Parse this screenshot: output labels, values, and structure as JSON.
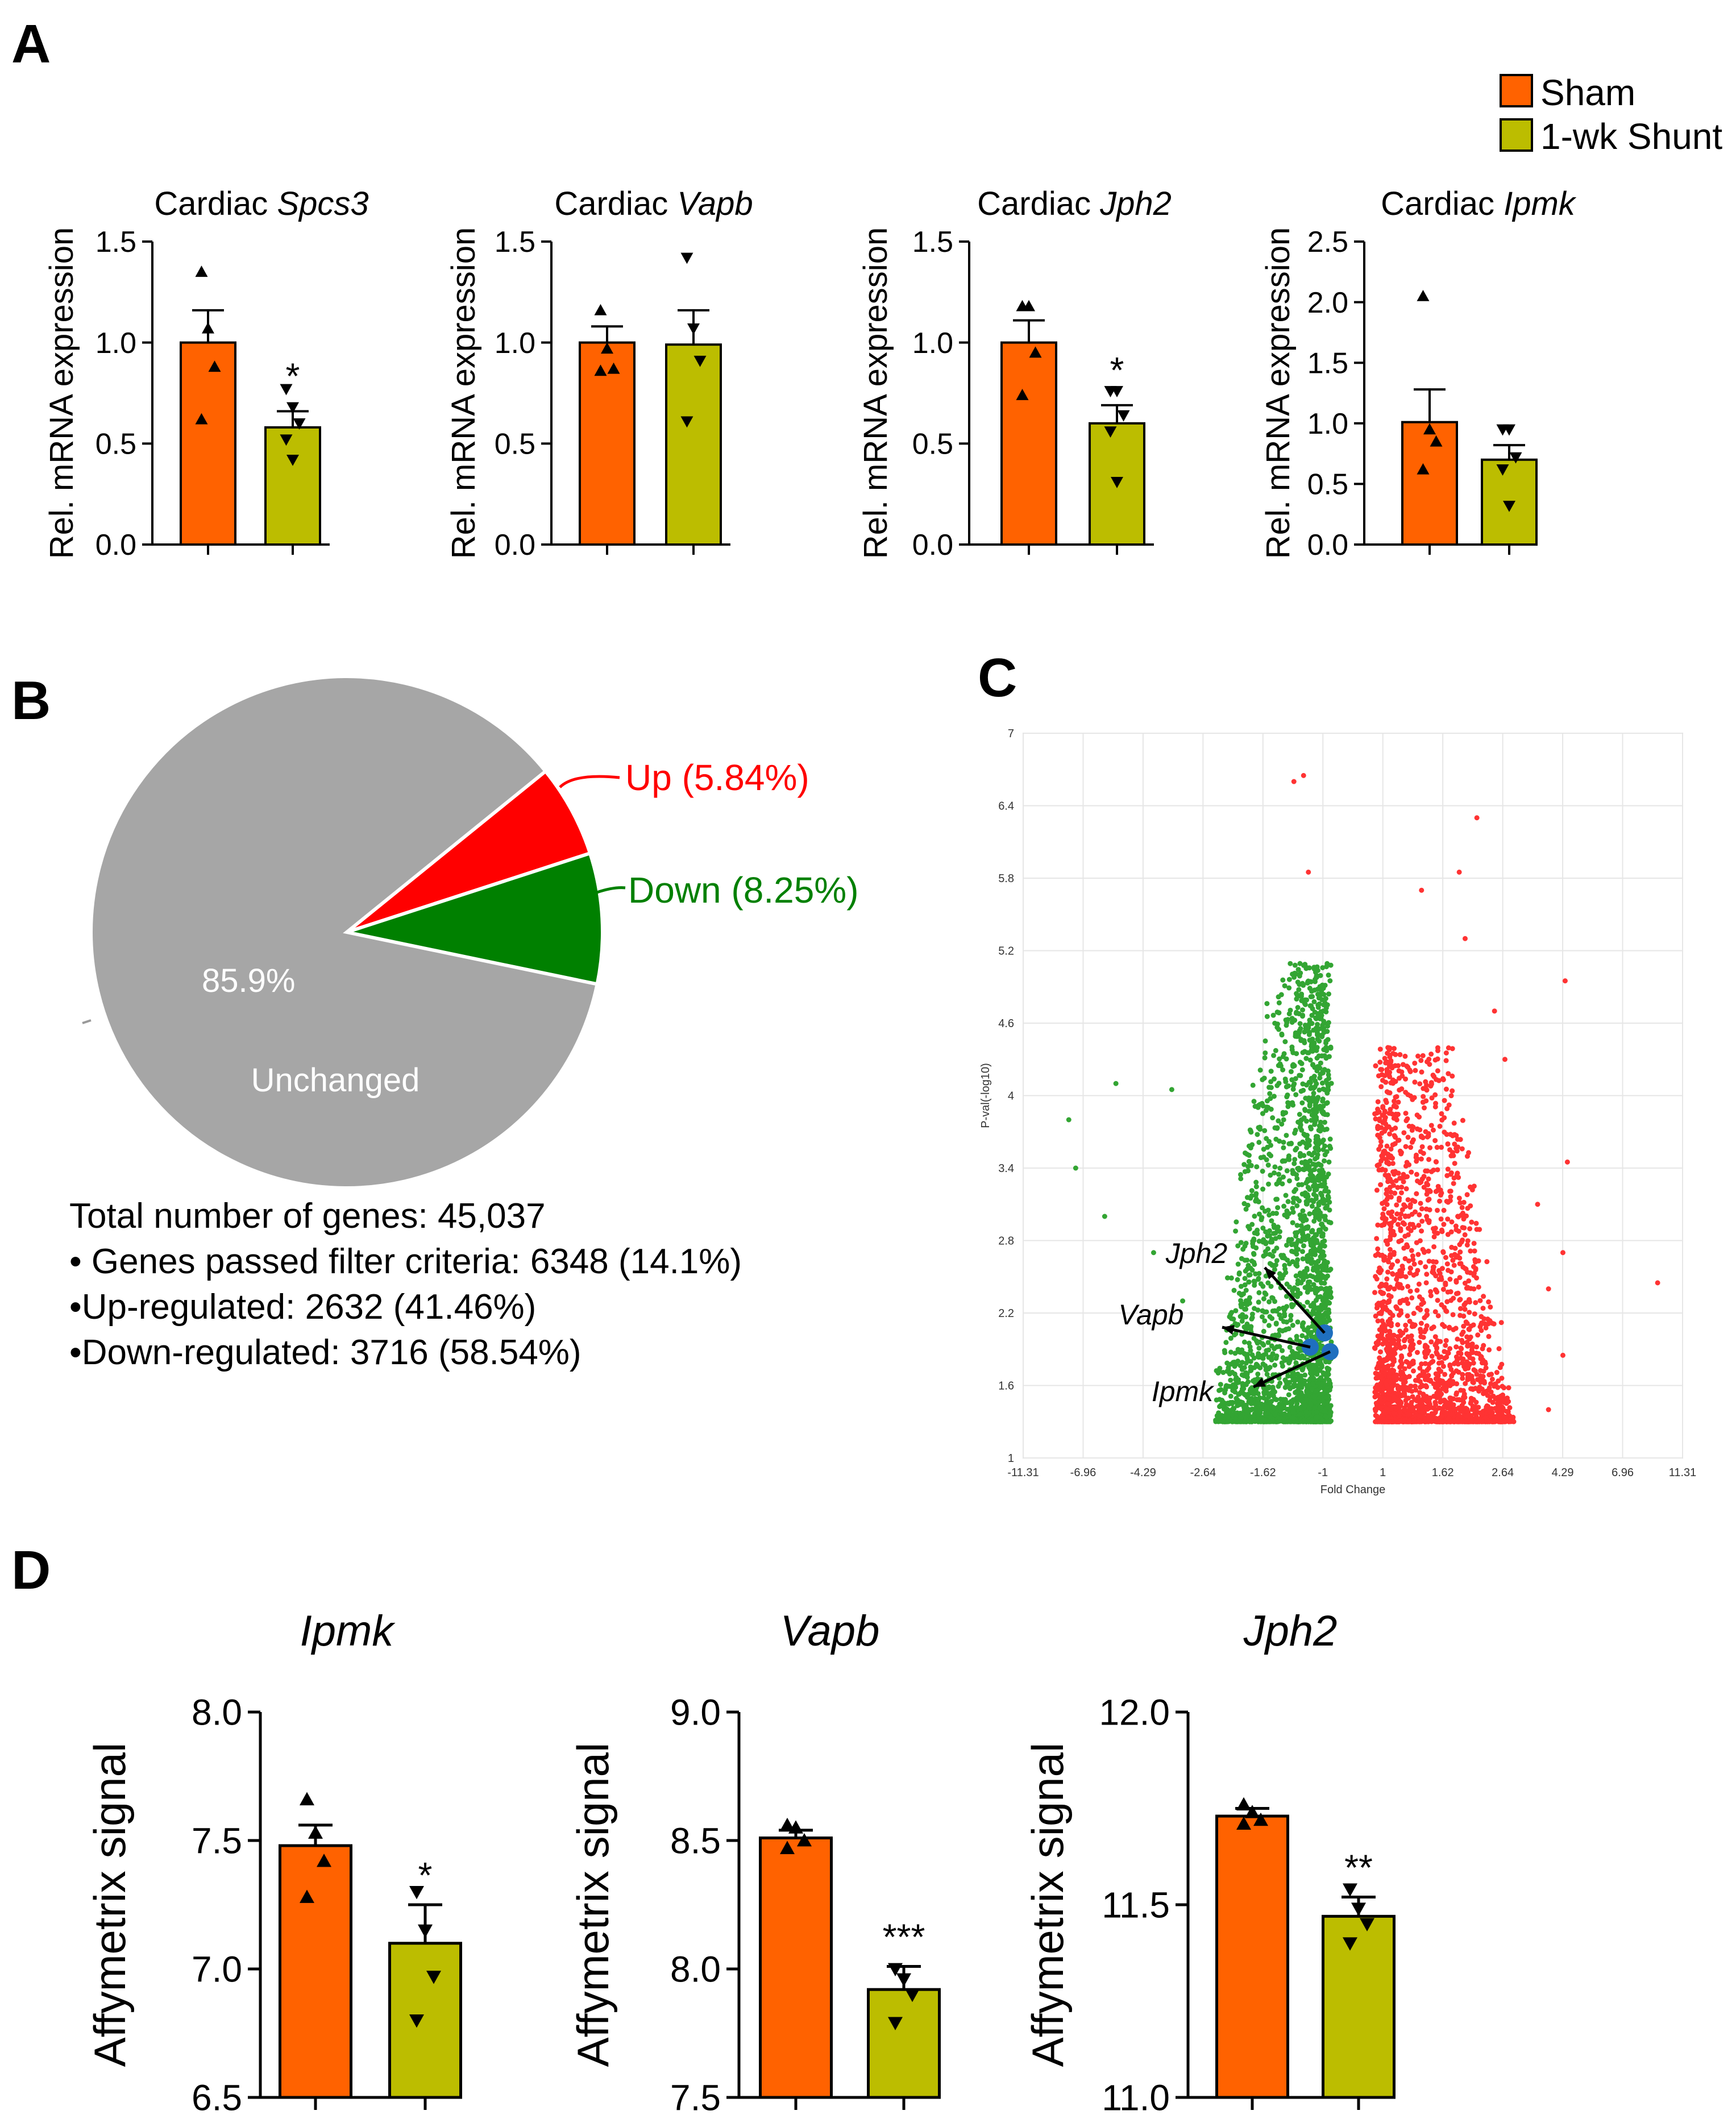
{
  "panels": {
    "A": "A",
    "B": "B",
    "C": "C",
    "D": "D"
  },
  "colors": {
    "sham": "#ff6200",
    "shunt": "#bcbd00",
    "up": "#ff0000",
    "down": "#008000",
    "unchanged": "#a6a6a6",
    "volcano_up": "#ff3333",
    "volcano_down": "#33a533",
    "highlight": "#1f6fbf"
  },
  "legend": {
    "sham": "Sham",
    "shunt": "1-wk Shunt"
  },
  "chart_data": [
    {
      "id": "A1",
      "type": "bar",
      "title_prefix": "Cardiac ",
      "gene": "Spcs3",
      "ylabel": "Rel. mRNA expression",
      "ylim": [
        0,
        1.5
      ],
      "yticks": [
        "0.0",
        "0.5",
        "1.0",
        "1.5"
      ],
      "ytick_values": [
        0,
        0.5,
        1.0,
        1.5
      ],
      "categories": [
        "Sham",
        "1-wk Shunt"
      ],
      "values": [
        1.0,
        0.58
      ],
      "errors": [
        0.16,
        0.08
      ],
      "points": [
        [
          1.35,
          1.07,
          0.88,
          0.62
        ],
        [
          0.77,
          0.68,
          0.6,
          0.52,
          0.42
        ]
      ],
      "significance": [
        "",
        "*"
      ]
    },
    {
      "id": "A2",
      "type": "bar",
      "title_prefix": "Cardiac ",
      "gene": "Vapb",
      "ylabel": "Rel. mRNA expression",
      "ylim": [
        0,
        1.5
      ],
      "yticks": [
        "0.0",
        "0.5",
        "1.0",
        "1.5"
      ],
      "ytick_values": [
        0,
        0.5,
        1.0,
        1.5
      ],
      "categories": [
        "Sham",
        "1-wk Shunt"
      ],
      "values": [
        1.0,
        0.99
      ],
      "errors": [
        0.08,
        0.17
      ],
      "points": [
        [
          1.16,
          0.97,
          0.87,
          0.86
        ],
        [
          1.42,
          1.07,
          0.91,
          0.61
        ]
      ],
      "significance": [
        "",
        ""
      ]
    },
    {
      "id": "A3",
      "type": "bar",
      "title_prefix": "Cardiac ",
      "gene": "Jph2",
      "ylabel": "Rel. mRNA expression",
      "ylim": [
        0,
        1.5
      ],
      "yticks": [
        "0.0",
        "0.5",
        "1.0",
        "1.5"
      ],
      "ytick_values": [
        0,
        0.5,
        1.0,
        1.5
      ],
      "categories": [
        "Sham",
        "1-wk Shunt"
      ],
      "values": [
        1.0,
        0.6
      ],
      "errors": [
        0.11,
        0.09
      ],
      "points": [
        [
          1.18,
          1.18,
          0.95,
          0.74
        ],
        [
          0.76,
          0.76,
          0.64,
          0.56,
          0.31
        ]
      ],
      "significance": [
        "",
        "*"
      ]
    },
    {
      "id": "A4",
      "type": "bar",
      "title_prefix": "Cardiac ",
      "gene": "Ipmk",
      "ylabel": "Rel. mRNA expression",
      "ylim": [
        0,
        2.5
      ],
      "yticks": [
        "0.0",
        "0.5",
        "1.0",
        "1.5",
        "2.0",
        "2.5"
      ],
      "ytick_values": [
        0,
        0.5,
        1.0,
        1.5,
        2.0,
        2.5
      ],
      "categories": [
        "Sham",
        "1-wk Shunt"
      ],
      "values": [
        1.01,
        0.7
      ],
      "errors": [
        0.27,
        0.12
      ],
      "points": [
        [
          2.05,
          0.95,
          0.85,
          0.62
        ],
        [
          0.95,
          0.95,
          0.72,
          0.62,
          0.32
        ]
      ],
      "significance": [
        "",
        ""
      ]
    },
    {
      "id": "B",
      "type": "pie",
      "slices": [
        {
          "label": "Up (5.84%)",
          "value": 5.84
        },
        {
          "label": "Down (8.25%)",
          "value": 8.25
        },
        {
          "label": "Unchanged",
          "pct_label": "85.9%",
          "value": 85.9
        }
      ]
    },
    {
      "id": "C",
      "type": "scatter",
      "xlabel": "Fold Change",
      "ylabel": "P-val(-log10)",
      "xticks": [
        "-11.31",
        "-6.96",
        "-4.29",
        "-2.64",
        "-1.62",
        "-1",
        "1",
        "1.62",
        "2.64",
        "4.29",
        "6.96",
        "11.31"
      ],
      "yticks": [
        "1",
        "1.6",
        "2.2",
        "2.8",
        "3.4",
        "4",
        "4.6",
        "5.2",
        "5.8",
        "6.4",
        "7"
      ],
      "ylim": [
        1,
        7
      ],
      "highlighted": [
        {
          "gene": "Jph2",
          "x": -1.1,
          "y": 2.0
        },
        {
          "gene": "Vapb",
          "x": -1.3,
          "y": 1.88
        },
        {
          "gene": "Ipmk",
          "x": -1.05,
          "y": 1.85
        }
      ]
    },
    {
      "id": "D1",
      "type": "bar",
      "gene": "Ipmk",
      "ylabel": "Affymetrix signal",
      "ylim": [
        6.5,
        8.0
      ],
      "yticks": [
        "6.5",
        "7.0",
        "7.5",
        "8.0"
      ],
      "ytick_values": [
        6.5,
        7.0,
        7.5,
        8.0
      ],
      "categories": [
        "Sham",
        "1-wk Shunt"
      ],
      "values": [
        7.48,
        7.1
      ],
      "errors": [
        0.08,
        0.15
      ],
      "points": [
        [
          7.66,
          7.53,
          7.42,
          7.28
        ],
        [
          7.3,
          7.15,
          6.97,
          6.8
        ]
      ],
      "significance": [
        "",
        "*"
      ]
    },
    {
      "id": "D2",
      "type": "bar",
      "gene": "Vapb",
      "ylabel": "Affymetrix signal",
      "ylim": [
        7.5,
        9.0
      ],
      "yticks": [
        "7.5",
        "8.0",
        "8.5",
        "9.0"
      ],
      "ytick_values": [
        7.5,
        8.0,
        8.5,
        9.0
      ],
      "categories": [
        "Sham",
        "1-wk Shunt"
      ],
      "values": [
        8.51,
        7.92
      ],
      "errors": [
        0.03,
        0.09
      ],
      "points": [
        [
          8.56,
          8.55,
          8.5,
          8.47
        ],
        [
          8.0,
          7.96,
          7.9,
          7.79
        ]
      ],
      "significance": [
        "",
        "***"
      ]
    },
    {
      "id": "D3",
      "type": "bar",
      "gene": "Jph2",
      "ylabel": "Affymetrix signal",
      "ylim": [
        11.0,
        12.0
      ],
      "yticks": [
        "11.0",
        "11.5",
        "12.0"
      ],
      "ytick_values": [
        11.0,
        11.5,
        12.0
      ],
      "categories": [
        "Sham",
        "1-wk Shunt"
      ],
      "values": [
        11.73,
        11.47
      ],
      "errors": [
        0.02,
        0.05
      ],
      "points": [
        [
          11.76,
          11.74,
          11.72,
          11.71
        ],
        [
          11.54,
          11.49,
          11.45,
          11.4
        ]
      ],
      "significance": [
        "",
        "**"
      ]
    }
  ],
  "stats_text": {
    "line1": "Total number of genes: 45,037",
    "line2": "• Genes passed filter criteria: 6348 (14.1%)",
    "line3": "•Up-regulated: 2632 (41.46%)",
    "line4": "•Down-regulated: 3716 (58.54%)"
  }
}
